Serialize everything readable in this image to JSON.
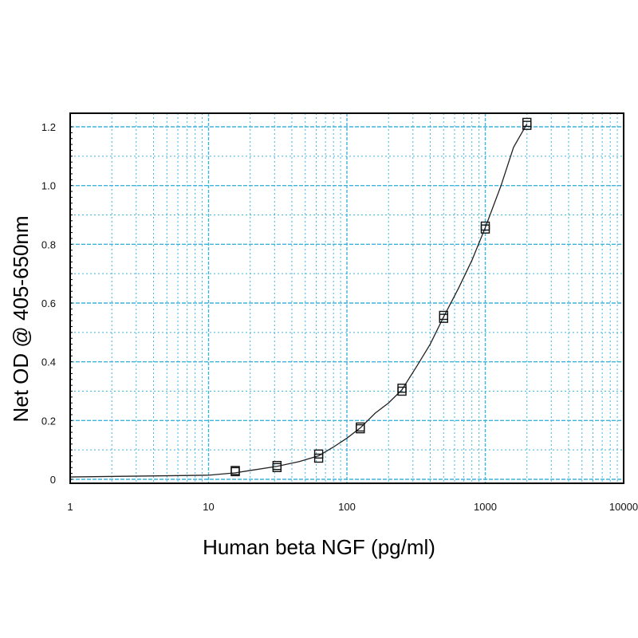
{
  "chart_data": {
    "type": "scatter",
    "title": "",
    "xlabel": "Human beta NGF (pg/ml)",
    "ylabel": "Net OD @ 405-650nm",
    "xscale": "log",
    "xlim": [
      1,
      10000
    ],
    "ylim": [
      0,
      1.2
    ],
    "x_ticks": [
      1,
      10,
      100,
      1000,
      10000
    ],
    "x_tick_labels": [
      "1",
      "10",
      "100",
      "1000",
      "10000"
    ],
    "y_ticks": [
      0,
      0.2,
      0.4,
      0.6,
      0.8,
      1.0,
      1.2
    ],
    "y_tick_labels": [
      "0",
      "0.2",
      "0.4",
      "0.6",
      "0.8",
      "1.0",
      "1.2"
    ],
    "grid": true,
    "legend": "none",
    "colors": {
      "grid": "#3fb4dc",
      "curve": "#222222",
      "marker": "#111111",
      "axis": "#000000"
    },
    "series": [
      {
        "marker": "square",
        "x": [
          15.6,
          15.6,
          31.25,
          31.25,
          62.5,
          62.5,
          125,
          125,
          250,
          250,
          500,
          500,
          1000,
          1000,
          2000,
          2000
        ],
        "y": [
          0.026,
          0.03,
          0.04,
          0.047,
          0.072,
          0.086,
          0.172,
          0.178,
          0.3,
          0.31,
          0.548,
          0.558,
          0.852,
          0.862,
          1.205,
          1.215
        ]
      },
      {
        "type": "line",
        "x": [
          1,
          2.2,
          5,
          10,
          15.6,
          20,
          31.25,
          45,
          62.5,
          80,
          100,
          125,
          160,
          200,
          250,
          320,
          400,
          500,
          640,
          800,
          1000,
          1300,
          1600,
          2000
        ],
        "y": [
          0.008,
          0.01,
          0.012,
          0.014,
          0.022,
          0.03,
          0.044,
          0.06,
          0.08,
          0.11,
          0.14,
          0.175,
          0.225,
          0.26,
          0.305,
          0.385,
          0.46,
          0.553,
          0.65,
          0.745,
          0.857,
          1.0,
          1.13,
          1.21
        ]
      }
    ]
  }
}
